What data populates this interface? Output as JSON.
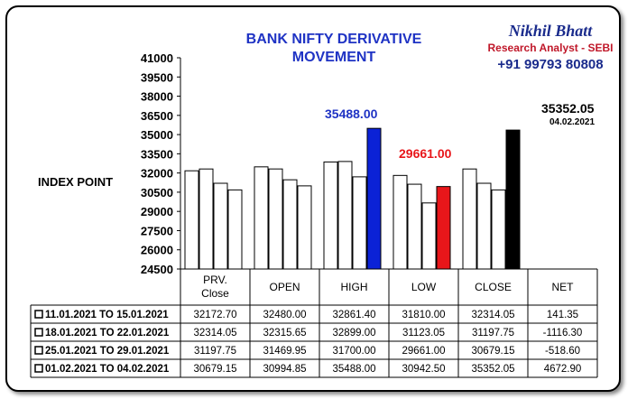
{
  "title_lines": [
    "BANK NIFTY DERIVATIVE",
    "MOVEMENT"
  ],
  "brand": {
    "name": "Nikhil Bhatt",
    "role": "Research Analyst - SEBI",
    "phone": "+91 99793 80808"
  },
  "callouts": {
    "high": "35488.00",
    "low": "29661.00",
    "latest_value": "35352.05",
    "latest_date": "04.02.2021"
  },
  "chart_data": {
    "type": "bar",
    "title": "BANK NIFTY DERIVATIVE MOVEMENT",
    "ylabel": "INDEX POINT",
    "ylim": [
      24500,
      41000
    ],
    "yticks": [
      "41000",
      "39500",
      "38000",
      "36500",
      "35000",
      "33500",
      "32000",
      "30500",
      "29000",
      "27500",
      "26000",
      "24500"
    ],
    "categories": [
      "PRV. Close",
      "OPEN",
      "HIGH",
      "LOW",
      "CLOSE"
    ],
    "table_columns": [
      "PRV. Close",
      "OPEN",
      "HIGH",
      "LOW",
      "CLOSE",
      "NET"
    ],
    "highlight_colors": {
      "HIGH": "#0b22d6",
      "LOW": "#e8161a",
      "CLOSE": "#000000"
    },
    "series": [
      {
        "name": "11.01.2021 TO 15.01.2021",
        "values": [
          32172.7,
          32480.0,
          32861.4,
          31810.0,
          32314.05
        ],
        "display": [
          "32172.70",
          "32480.00",
          "32861.40",
          "31810.00",
          "32314.05",
          "141.35"
        ]
      },
      {
        "name": "18.01.2021 TO 22.01.2021",
        "values": [
          32314.05,
          32315.65,
          32899.0,
          31123.05,
          31197.75
        ],
        "display": [
          "32314.05",
          "32315.65",
          "32899.00",
          "31123.05",
          "31197.75",
          "-1116.30"
        ]
      },
      {
        "name": "25.01.2021 TO 29.01.2021",
        "values": [
          31197.75,
          31469.95,
          31700.0,
          29661.0,
          30679.15
        ],
        "display": [
          "31197.75",
          "31469.95",
          "31700.00",
          "29661.00",
          "30679.15",
          "-518.60"
        ]
      },
      {
        "name": "01.02.2021 TO 04.02.2021",
        "values": [
          30679.15,
          30994.85,
          35488.0,
          30942.5,
          35352.05
        ],
        "display": [
          "30679.15",
          "30994.85",
          "35488.00",
          "30942.50",
          "35352.05",
          "4672.90"
        ]
      }
    ]
  }
}
